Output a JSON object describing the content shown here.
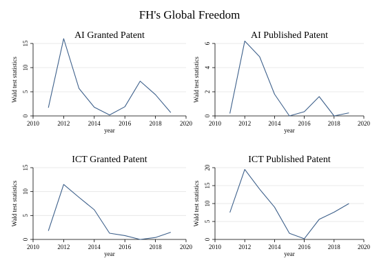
{
  "title": "FH's Global Freedom",
  "chart_data": [
    {
      "type": "line",
      "title": "AI Granted Patent",
      "xlabel": "year",
      "ylabel": "Wald test statistics",
      "xlim": [
        2010,
        2020
      ],
      "ylim": [
        0,
        15
      ],
      "xticks": [
        2010,
        2012,
        2014,
        2016,
        2018,
        2020
      ],
      "yticks": [
        0,
        5,
        10,
        15
      ],
      "grid": true,
      "line_color": "#3c5f8a",
      "x": [
        2011,
        2012,
        2013,
        2014,
        2015,
        2016,
        2017,
        2018,
        2019
      ],
      "values": [
        1.7,
        16.0,
        5.7,
        1.8,
        0.2,
        1.9,
        7.2,
        4.4,
        0.7
      ]
    },
    {
      "type": "line",
      "title": "AI Published Patent",
      "xlabel": "year",
      "ylabel": "Wald test statistics",
      "xlim": [
        2010,
        2020
      ],
      "ylim": [
        0,
        6
      ],
      "xticks": [
        2010,
        2012,
        2014,
        2016,
        2018,
        2020
      ],
      "yticks": [
        0,
        2,
        4,
        6
      ],
      "grid": true,
      "line_color": "#3c5f8a",
      "x": [
        2011,
        2012,
        2013,
        2014,
        2015,
        2016,
        2017,
        2018,
        2019
      ],
      "values": [
        0.2,
        6.2,
        4.9,
        1.8,
        0.0,
        0.35,
        1.6,
        0.0,
        0.25
      ]
    },
    {
      "type": "line",
      "title": "ICT Granted Patent",
      "xlabel": "year",
      "ylabel": "Wald test statistics",
      "xlim": [
        2010,
        2020
      ],
      "ylim": [
        0,
        15
      ],
      "xticks": [
        2010,
        2012,
        2014,
        2016,
        2018,
        2020
      ],
      "yticks": [
        0,
        5,
        10,
        15
      ],
      "grid": true,
      "line_color": "#3c5f8a",
      "x": [
        2011,
        2012,
        2013,
        2014,
        2015,
        2016,
        2017,
        2018,
        2019
      ],
      "values": [
        1.8,
        11.5,
        8.8,
        6.2,
        1.3,
        0.8,
        0.0,
        0.4,
        1.5
      ]
    },
    {
      "type": "line",
      "title": "ICT Published Patent",
      "xlabel": "year",
      "ylabel": "Wald test statistics",
      "xlim": [
        2010,
        2020
      ],
      "ylim": [
        0,
        20
      ],
      "xticks": [
        2010,
        2012,
        2014,
        2016,
        2018,
        2020
      ],
      "yticks": [
        0,
        5,
        10,
        15,
        20
      ],
      "grid": true,
      "line_color": "#3c5f8a",
      "x": [
        2011,
        2012,
        2013,
        2014,
        2015,
        2016,
        2017,
        2018,
        2019
      ],
      "values": [
        7.5,
        19.5,
        14.0,
        9.0,
        1.7,
        0.2,
        5.6,
        7.6,
        10.0
      ]
    }
  ]
}
